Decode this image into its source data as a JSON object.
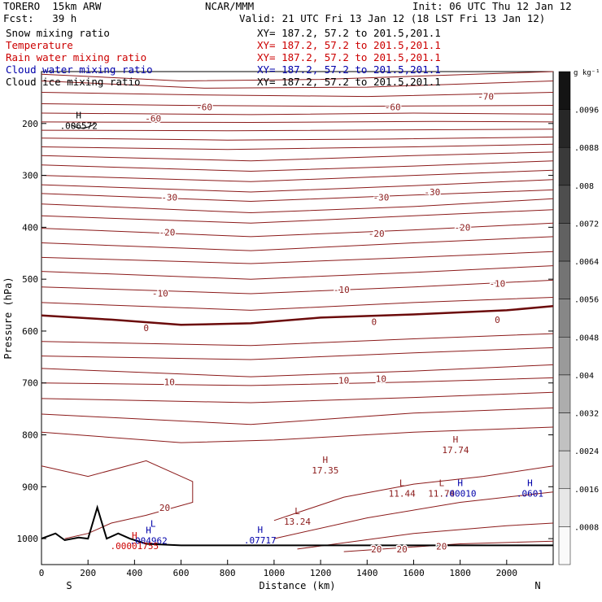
{
  "header": {
    "model": "TORERO  15km ARW",
    "org": "NCAR/MMM",
    "init": "Init: 06 UTC Thu 12 Jan 12",
    "fcst": "Fcst:   39 h",
    "valid": "Valid: 21 UTC Fri 13 Jan 12 (18 LST Fri 13 Jan 12)"
  },
  "fields": [
    {
      "label": "Snow mixing ratio",
      "xy": "XY= 187.2, 57.2 to 201.5,201.1",
      "color": "#000000"
    },
    {
      "label": "Temperature",
      "xy": "XY= 187.2, 57.2 to 201.5,201.1",
      "color": "#cc0000"
    },
    {
      "label": "Rain water mixing ratio",
      "xy": "XY= 187.2, 57.2 to 201.5,201.1",
      "color": "#cc0000"
    },
    {
      "label": "Cloud water mixing ratio",
      "xy": "XY= 187.2, 57.2 to 201.5,201.1",
      "color": "#0000aa"
    },
    {
      "label": "Cloud ice mixing ratio",
      "xy": "XY= 187.2, 57.2 to 201.5,201.1",
      "color": "#000000"
    }
  ],
  "chart_data": {
    "type": "contour",
    "xlabel": "Distance (km)",
    "ylabel": "Pressure (hPa)",
    "xlim": [
      0,
      2200
    ],
    "ylim": [
      1050,
      100
    ],
    "x_ticks": [
      "0",
      "200",
      "400",
      "600",
      "800",
      "1000",
      "1200",
      "1400",
      "1600",
      "1800",
      "2000"
    ],
    "y_ticks": [
      "200",
      "300",
      "400",
      "500",
      "600",
      "700",
      "800",
      "900",
      "1000"
    ],
    "end_labels": {
      "left": "S",
      "right": "N"
    },
    "colorbar": {
      "unit": "g kg⁻¹",
      "labels": [
        ".0008",
        ".0016",
        ".0024",
        ".0032",
        ".004",
        ".0048",
        ".0056",
        ".0064",
        ".0072",
        ".008",
        ".0088",
        ".0096"
      ]
    },
    "contour_colors": {
      "temperature": "#8b1a1a",
      "snow": "#000000",
      "cloud_water": "#0000aa",
      "rain": "#cc0000"
    },
    "temperature_labels": [
      {
        "text": "-70",
        "x": 1910,
        "p": 148
      },
      {
        "text": "-60",
        "x": 700,
        "p": 168
      },
      {
        "text": "-60",
        "x": 1510,
        "p": 168
      },
      {
        "text": "-60",
        "x": 480,
        "p": 190
      },
      {
        "text": "-30",
        "x": 550,
        "p": 342
      },
      {
        "text": "-30",
        "x": 1460,
        "p": 342
      },
      {
        "text": "-30",
        "x": 1680,
        "p": 332
      },
      {
        "text": "-20",
        "x": 540,
        "p": 410
      },
      {
        "text": "-20",
        "x": 1440,
        "p": 412
      },
      {
        "text": "-20",
        "x": 1810,
        "p": 400
      },
      {
        "text": "-10",
        "x": 510,
        "p": 527
      },
      {
        "text": "-10",
        "x": 1290,
        "p": 520
      },
      {
        "text": "-10",
        "x": 1960,
        "p": 508
      },
      {
        "text": "0",
        "x": 450,
        "p": 594
      },
      {
        "text": "0",
        "x": 1430,
        "p": 582
      },
      {
        "text": "0",
        "x": 1960,
        "p": 578
      },
      {
        "text": "10",
        "x": 550,
        "p": 698
      },
      {
        "text": "10",
        "x": 1300,
        "p": 695
      },
      {
        "text": "10",
        "x": 1460,
        "p": 692
      },
      {
        "text": "20",
        "x": 530,
        "p": 940
      },
      {
        "text": "20",
        "x": 1440,
        "p": 1020
      },
      {
        "text": "20",
        "x": 1550,
        "p": 1020
      },
      {
        "text": "20",
        "x": 1720,
        "p": 1015
      }
    ],
    "extrema": [
      {
        "kind": "H",
        "value": ".006572",
        "x": 160,
        "p": 193,
        "color": "#000000"
      },
      {
        "kind": "H",
        "value": "17.35",
        "x": 1220,
        "p": 857,
        "color": "#8b1a1a"
      },
      {
        "kind": "H",
        "value": "17.74",
        "x": 1780,
        "p": 818,
        "color": "#8b1a1a"
      },
      {
        "kind": "L",
        "value": "11.44",
        "x": 1550,
        "p": 902,
        "color": "#8b1a1a"
      },
      {
        "kind": "L",
        "value": "11.74",
        "x": 1720,
        "p": 902,
        "color": "#8b1a1a"
      },
      {
        "kind": "L",
        "value": "13.24",
        "x": 1100,
        "p": 956,
        "color": "#8b1a1a"
      },
      {
        "kind": "H",
        "value": ".00010",
        "x": 1800,
        "p": 902,
        "color": "#0000aa"
      },
      {
        "kind": "H",
        "value": ".0601",
        "x": 2100,
        "p": 902,
        "color": "#0000aa"
      },
      {
        "kind": "H",
        "value": ".07717",
        "x": 940,
        "p": 992,
        "color": "#0000aa"
      },
      {
        "kind": "H",
        "value": ".004962",
        "x": 460,
        "p": 993,
        "color": "#0000aa"
      },
      {
        "kind": "H",
        "value": ".00001755",
        "x": 400,
        "p": 1003,
        "color": "#cc0000"
      },
      {
        "kind": "L",
        "value": "",
        "x": 480,
        "p": 980,
        "color": "#0000aa"
      }
    ]
  }
}
